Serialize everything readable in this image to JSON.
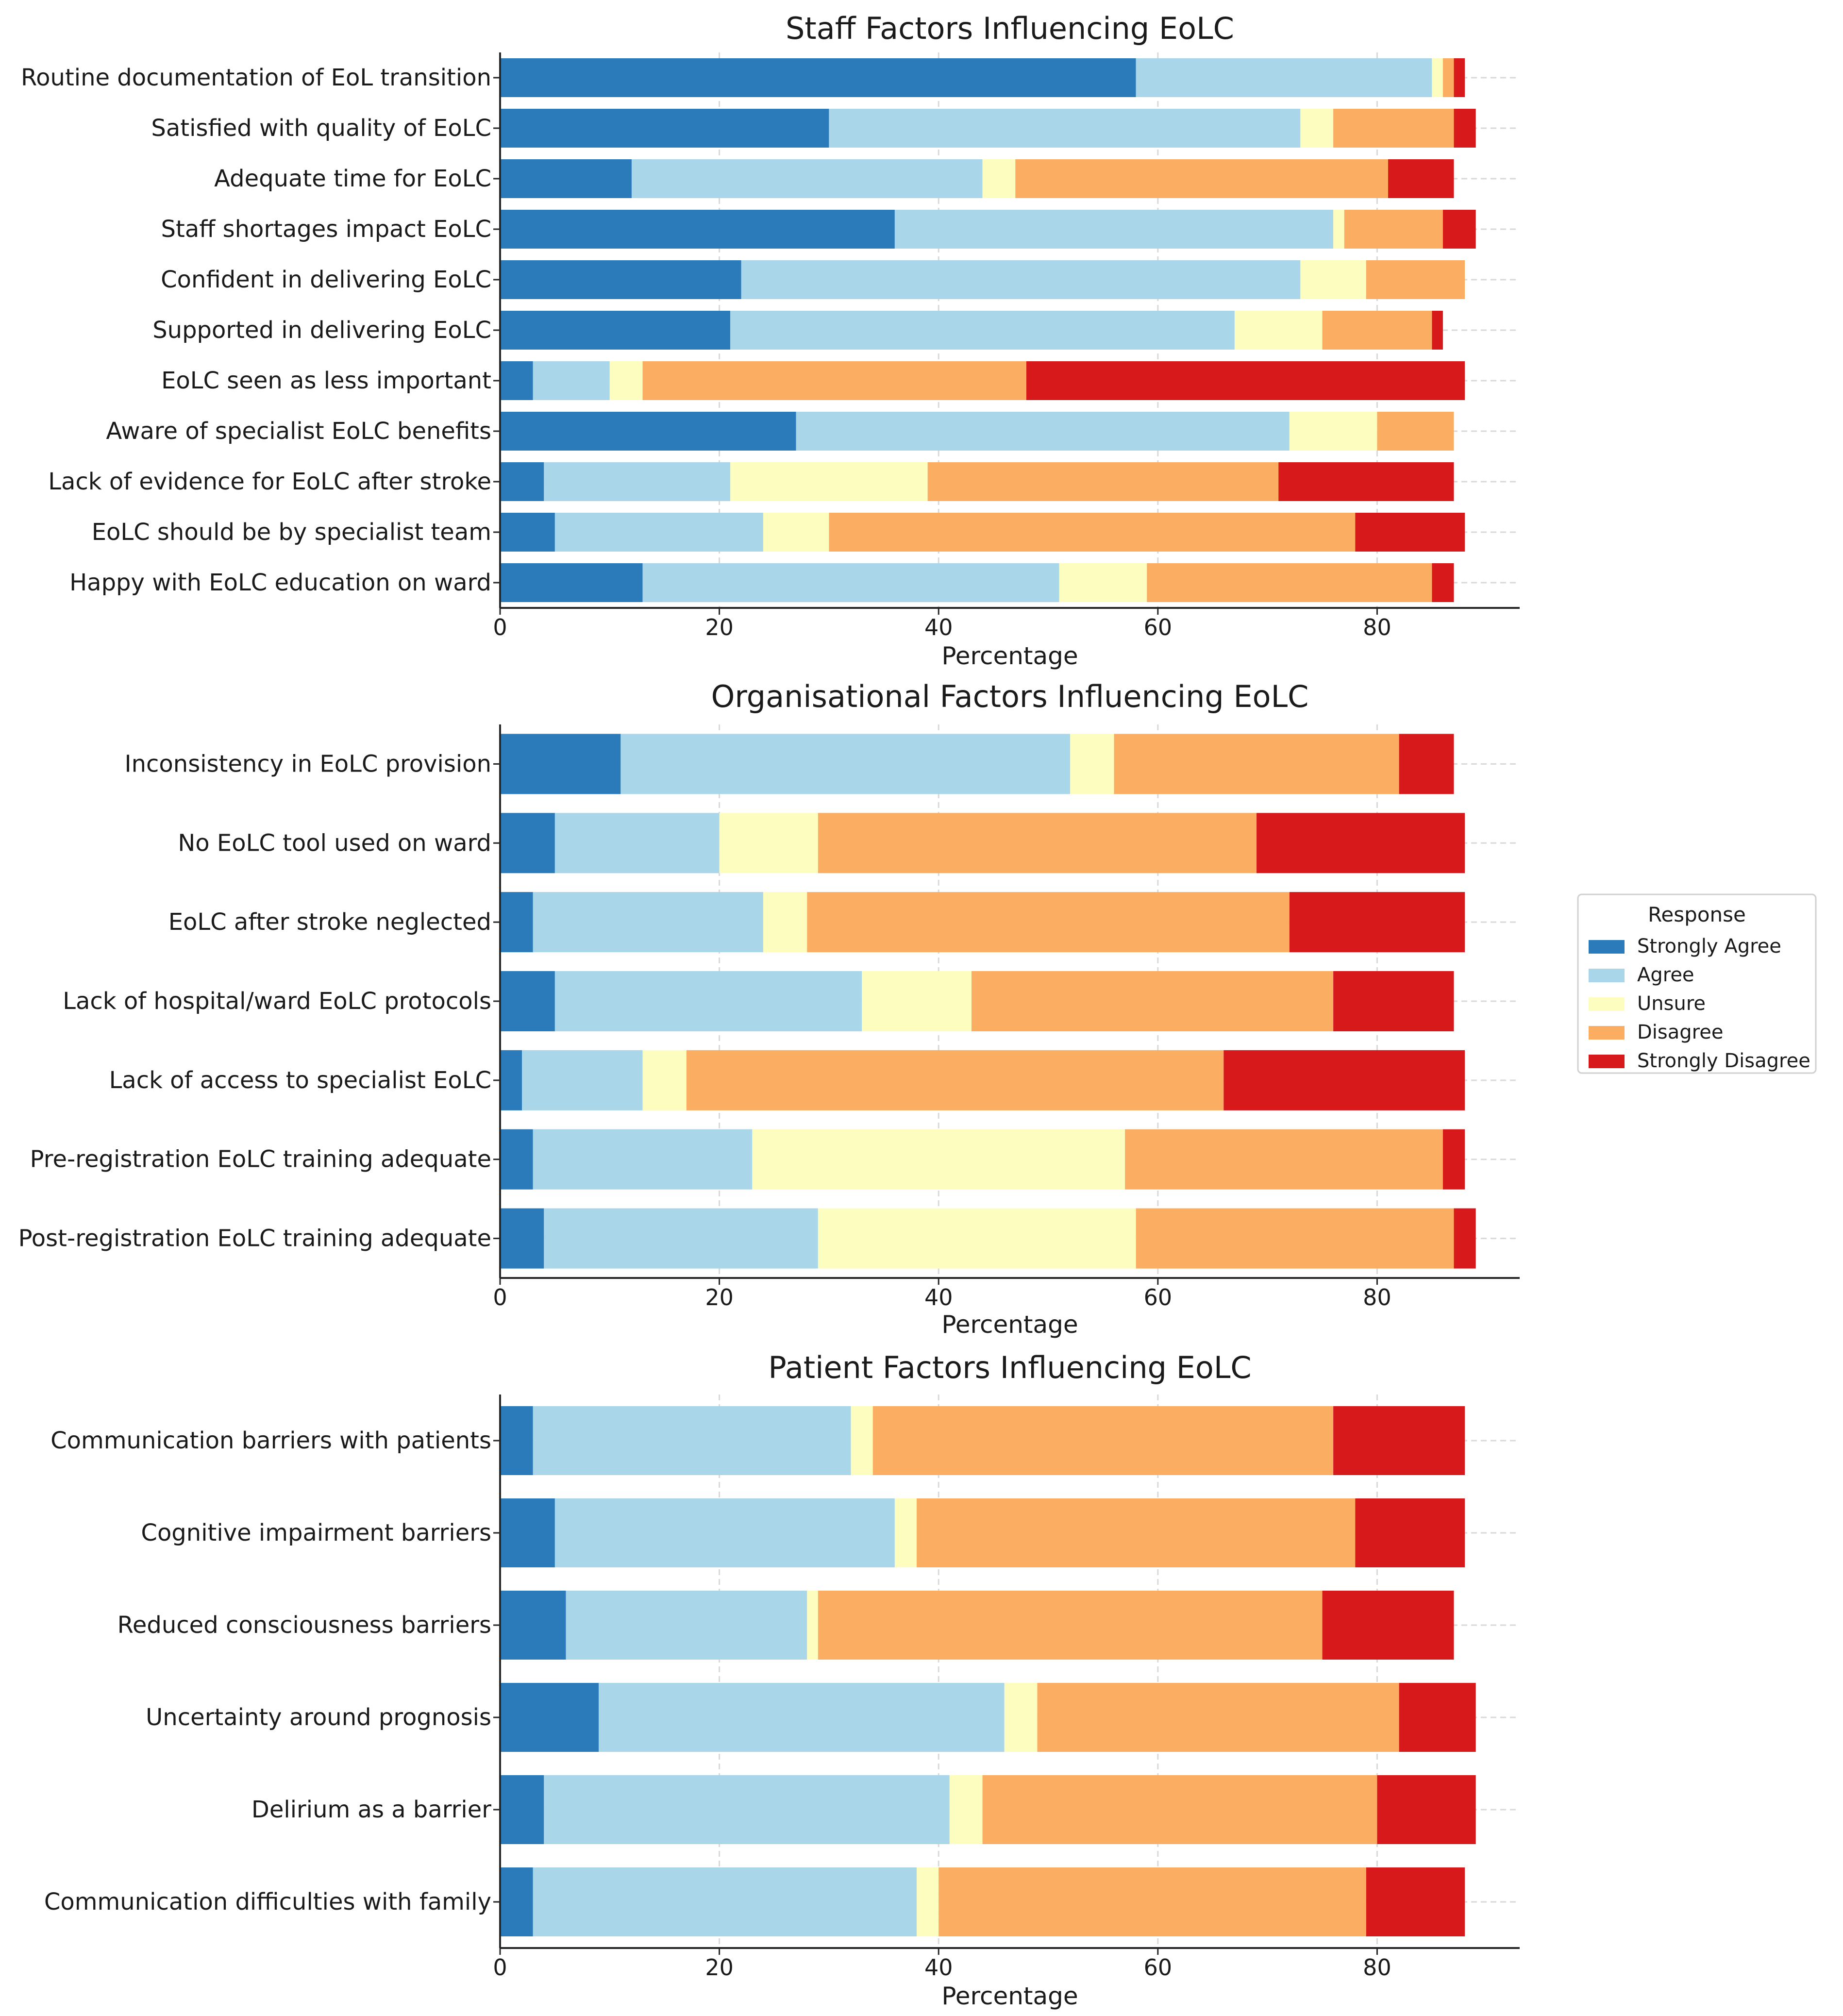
{
  "legend": {
    "title": "Response",
    "entries": [
      {
        "label": "Strongly Agree",
        "color": "#2b7bba"
      },
      {
        "label": "Agree",
        "color": "#a9d6e8"
      },
      {
        "label": "Unsure",
        "color": "#fdfdc0"
      },
      {
        "label": "Disagree",
        "color": "#fbae61"
      },
      {
        "label": "Strongly Disagree",
        "color": "#d7191c"
      }
    ]
  },
  "chart_data": [
    {
      "type": "bar",
      "orientation": "horizontal",
      "stacked": true,
      "title": "Staff Factors Influencing EoLC",
      "xlabel": "Percentage",
      "ylabel": "",
      "xlim": [
        0,
        93
      ],
      "xticks": [
        0,
        20,
        40,
        60,
        80
      ],
      "grid": true,
      "categories": [
        "Routine documentation of EoL transition",
        "Satisfied with quality of EoLC",
        "Adequate time for EoLC",
        "Staff shortages impact EoLC",
        "Confident in delivering EoLC",
        "Supported in delivering EoLC",
        "EoLC seen as less important",
        "Aware of specialist EoLC benefits",
        "Lack of evidence for EoLC after stroke",
        "EoLC should be by specialist team",
        "Happy with EoLC education on ward"
      ],
      "series": [
        {
          "name": "Strongly Agree",
          "values": [
            58,
            30,
            12,
            36,
            22,
            21,
            3,
            27,
            4,
            5,
            13
          ]
        },
        {
          "name": "Agree",
          "values": [
            27,
            43,
            32,
            40,
            51,
            46,
            7,
            45,
            17,
            19,
            38
          ]
        },
        {
          "name": "Unsure",
          "values": [
            1,
            3,
            3,
            1,
            6,
            8,
            3,
            8,
            18,
            6,
            8
          ]
        },
        {
          "name": "Disagree",
          "values": [
            1,
            11,
            34,
            9,
            9,
            10,
            35,
            7,
            32,
            48,
            26
          ]
        },
        {
          "name": "Strongly Disagree",
          "values": [
            1,
            2,
            6,
            3,
            0,
            1,
            40,
            0,
            16,
            10,
            2
          ]
        }
      ]
    },
    {
      "type": "bar",
      "orientation": "horizontal",
      "stacked": true,
      "title": "Organisational Factors Influencing EoLC",
      "xlabel": "Percentage",
      "ylabel": "",
      "xlim": [
        0,
        93
      ],
      "xticks": [
        0,
        20,
        40,
        60,
        80
      ],
      "grid": true,
      "categories": [
        "Inconsistency in EoLC provision",
        "No EoLC tool used on ward",
        "EoLC after stroke neglected",
        "Lack of hospital/ward EoLC protocols",
        "Lack of access to specialist EoLC",
        "Pre-registration EoLC training adequate",
        "Post-registration EoLC training adequate"
      ],
      "series": [
        {
          "name": "Strongly Agree",
          "values": [
            11,
            5,
            3,
            5,
            2,
            3,
            4
          ]
        },
        {
          "name": "Agree",
          "values": [
            41,
            15,
            21,
            28,
            11,
            20,
            25
          ]
        },
        {
          "name": "Unsure",
          "values": [
            4,
            9,
            4,
            10,
            4,
            34,
            29
          ]
        },
        {
          "name": "Disagree",
          "values": [
            26,
            40,
            44,
            33,
            49,
            29,
            29
          ]
        },
        {
          "name": "Strongly Disagree",
          "values": [
            5,
            19,
            16,
            11,
            22,
            2,
            2
          ]
        }
      ]
    },
    {
      "type": "bar",
      "orientation": "horizontal",
      "stacked": true,
      "title": "Patient Factors Influencing EoLC",
      "xlabel": "Percentage",
      "ylabel": "",
      "xlim": [
        0,
        93
      ],
      "xticks": [
        0,
        20,
        40,
        60,
        80
      ],
      "grid": true,
      "categories": [
        "Communication barriers with patients",
        "Cognitive impairment barriers",
        "Reduced consciousness barriers",
        "Uncertainty around prognosis",
        "Delirium as a barrier",
        "Communication difficulties with family"
      ],
      "series": [
        {
          "name": "Strongly Agree",
          "values": [
            3,
            5,
            6,
            9,
            4,
            3
          ]
        },
        {
          "name": "Agree",
          "values": [
            29,
            31,
            22,
            37,
            37,
            35
          ]
        },
        {
          "name": "Unsure",
          "values": [
            2,
            2,
            1,
            3,
            3,
            2
          ]
        },
        {
          "name": "Disagree",
          "values": [
            42,
            40,
            46,
            33,
            36,
            39
          ]
        },
        {
          "name": "Strongly Disagree",
          "values": [
            12,
            10,
            12,
            7,
            9,
            9
          ]
        }
      ]
    }
  ]
}
